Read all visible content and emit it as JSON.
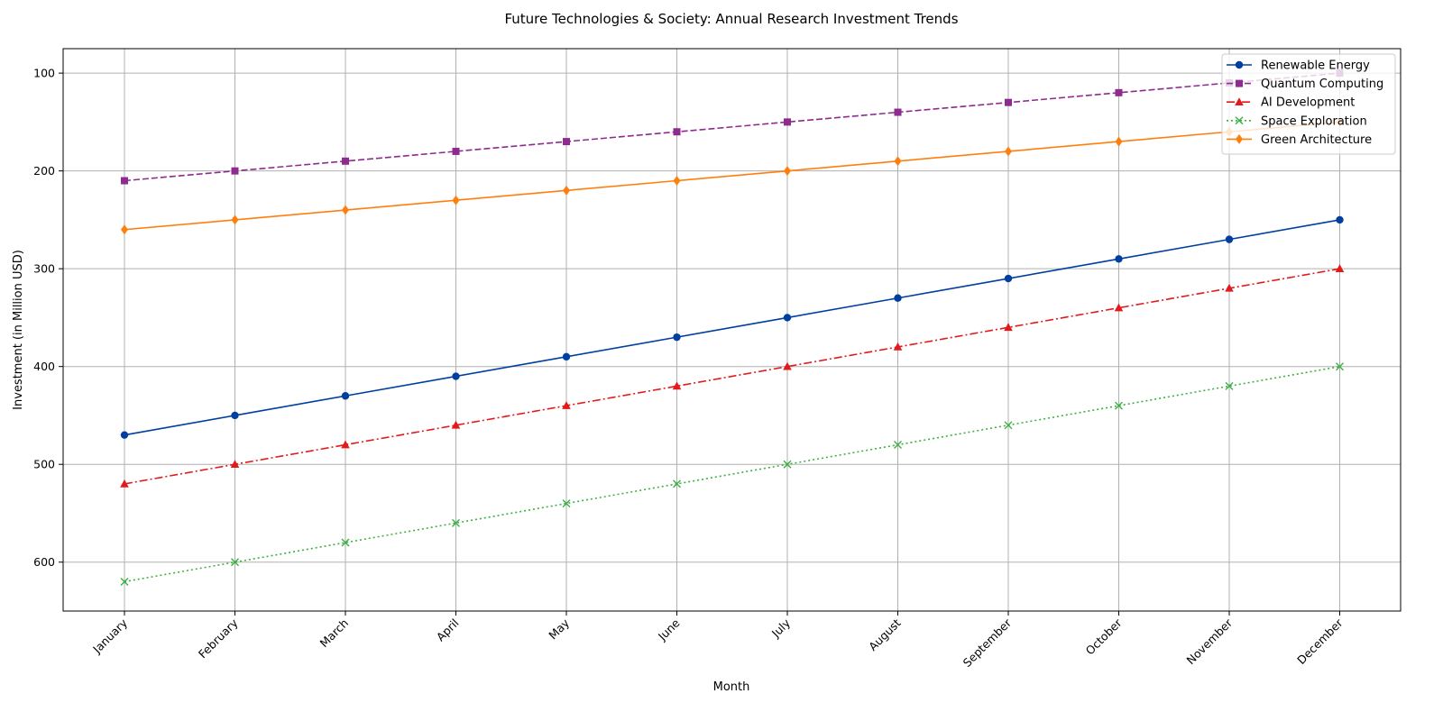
{
  "chart_data": {
    "type": "line",
    "title": "Future Technologies & Society: Annual Research Investment Trends",
    "xlabel": "Month",
    "ylabel": "Investment (in Million USD)",
    "categories": [
      "January",
      "February",
      "March",
      "April",
      "May",
      "June",
      "July",
      "August",
      "September",
      "October",
      "November",
      "December"
    ],
    "ylim": [
      650,
      75
    ],
    "y_inverted": true,
    "yticks": [
      100,
      200,
      300,
      400,
      500,
      600
    ],
    "grid": true,
    "legend_position": "top-right",
    "series": [
      {
        "name": "Renewable Energy",
        "color": "#003f9f",
        "marker": "circle",
        "linestyle": "solid",
        "values": [
          470,
          450,
          430,
          410,
          390,
          370,
          350,
          330,
          310,
          290,
          270,
          250
        ]
      },
      {
        "name": "Quantum Computing",
        "color": "#8e2b8e",
        "marker": "square",
        "linestyle": "dashed",
        "values": [
          210,
          200,
          190,
          180,
          170,
          160,
          150,
          140,
          130,
          120,
          110,
          100
        ]
      },
      {
        "name": "AI Development",
        "color": "#e31a1c",
        "marker": "triangle",
        "linestyle": "dashdot",
        "values": [
          520,
          500,
          480,
          460,
          440,
          420,
          400,
          380,
          360,
          340,
          320,
          300
        ]
      },
      {
        "name": "Space Exploration",
        "color": "#3cb043",
        "marker": "x",
        "linestyle": "dotted",
        "values": [
          620,
          600,
          580,
          560,
          540,
          520,
          500,
          480,
          460,
          440,
          420,
          400
        ]
      },
      {
        "name": "Green Architecture",
        "color": "#ff7f0e",
        "marker": "diamond",
        "linestyle": "solid",
        "values": [
          260,
          250,
          240,
          230,
          220,
          210,
          200,
          190,
          180,
          170,
          160,
          150
        ]
      }
    ]
  }
}
